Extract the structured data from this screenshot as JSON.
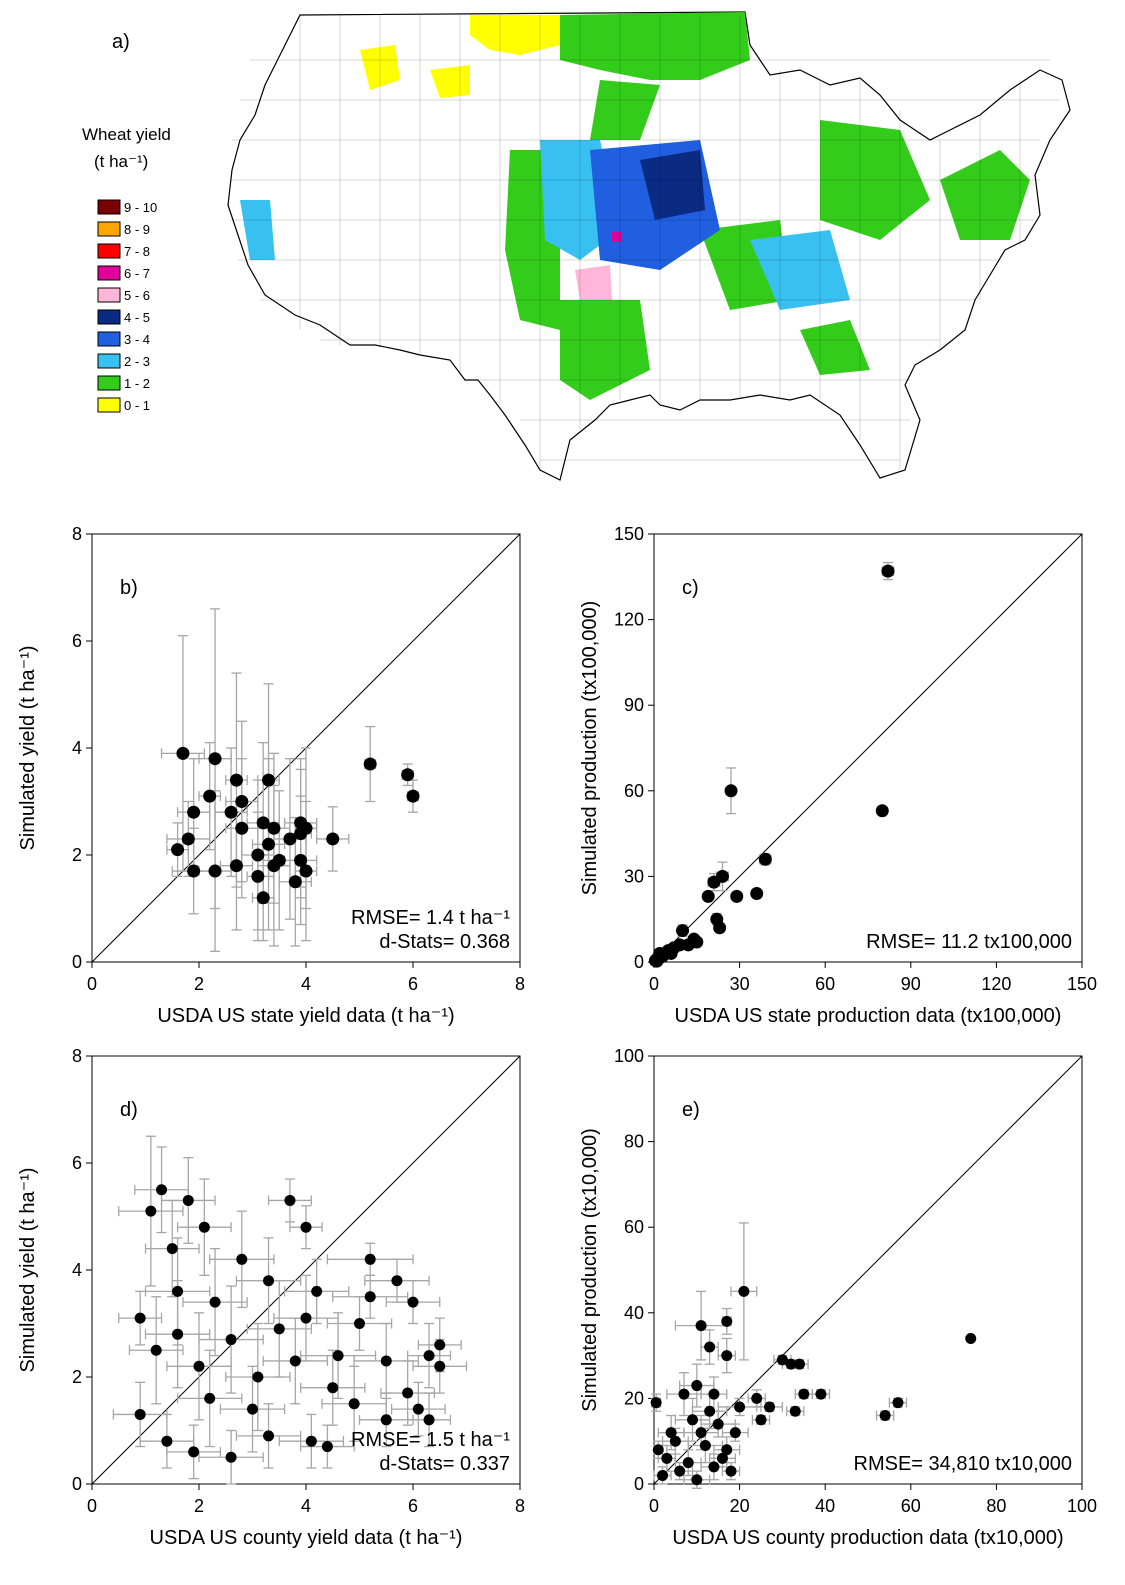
{
  "panel_a": {
    "label": "a)",
    "legend_title": "Wheat yield",
    "legend_unit": "(t ha⁻¹)",
    "legend_items": [
      {
        "label": "9 - 10",
        "color": "#7b0000"
      },
      {
        "label": "8 - 9",
        "color": "#ffa500"
      },
      {
        "label": "7 - 8",
        "color": "#ff0000"
      },
      {
        "label": "6 - 7",
        "color": "#e0009a"
      },
      {
        "label": "5 - 6",
        "color": "#ffb6d9"
      },
      {
        "label": "4 - 5",
        "color": "#0b2a82"
      },
      {
        "label": "3 - 4",
        "color": "#1f5fe0"
      },
      {
        "label": "2 - 3",
        "color": "#38c0f0"
      },
      {
        "label": "1 - 2",
        "color": "#33cc1a"
      },
      {
        "label": "0 - 1",
        "color": "#ffff00"
      }
    ]
  },
  "chart_data": [
    {
      "id": "b",
      "type": "scatter",
      "label": "b)",
      "xlabel": "USDA US state yield data (t ha⁻¹)",
      "ylabel": "Simulated yield (t ha⁻¹)",
      "xlim": [
        0,
        8
      ],
      "ylim": [
        0,
        8
      ],
      "xticks": [
        "0",
        "2",
        "4",
        "6",
        "8"
      ],
      "yticks": [
        "0",
        "2",
        "4",
        "6",
        "8"
      ],
      "one_to_one_line": true,
      "stats": [
        "RMSE= 1.4 t ha⁻¹",
        "d-Stats= 0.368"
      ],
      "points": [
        {
          "x": 1.7,
          "y": 3.9,
          "xe": 0.4,
          "ye": 2.2
        },
        {
          "x": 2.3,
          "y": 3.8,
          "xe": 0.3,
          "ye": 2.8
        },
        {
          "x": 5.2,
          "y": 3.7,
          "xe": 0.1,
          "ye": 0.7
        },
        {
          "x": 5.9,
          "y": 3.5,
          "xe": 0.1,
          "ye": 0.2
        },
        {
          "x": 6.0,
          "y": 3.1,
          "xe": 0.1,
          "ye": 0.3
        },
        {
          "x": 2.7,
          "y": 3.4,
          "xe": 0.2,
          "ye": 2.0
        },
        {
          "x": 3.3,
          "y": 3.4,
          "xe": 0.2,
          "ye": 1.8
        },
        {
          "x": 2.2,
          "y": 3.1,
          "xe": 0.2,
          "ye": 1.0
        },
        {
          "x": 2.8,
          "y": 3.0,
          "xe": 0.3,
          "ye": 1.5
        },
        {
          "x": 1.9,
          "y": 2.8,
          "xe": 0.3,
          "ye": 1.0
        },
        {
          "x": 2.6,
          "y": 2.8,
          "xe": 0.3,
          "ye": 1.2
        },
        {
          "x": 3.2,
          "y": 2.6,
          "xe": 0.3,
          "ye": 1.5
        },
        {
          "x": 3.4,
          "y": 2.5,
          "xe": 0.3,
          "ye": 1.4
        },
        {
          "x": 4.0,
          "y": 2.5,
          "xe": 0.2,
          "ye": 1.5
        },
        {
          "x": 3.9,
          "y": 2.6,
          "xe": 0.3,
          "ye": 1.2
        },
        {
          "x": 2.8,
          "y": 2.5,
          "xe": 0.3,
          "ye": 1.3
        },
        {
          "x": 3.7,
          "y": 2.3,
          "xe": 0.3,
          "ye": 1.5
        },
        {
          "x": 1.8,
          "y": 2.3,
          "xe": 0.4,
          "ye": 0.7
        },
        {
          "x": 3.3,
          "y": 2.2,
          "xe": 0.3,
          "ye": 1.6
        },
        {
          "x": 3.9,
          "y": 2.4,
          "xe": 0.2,
          "ye": 1.2
        },
        {
          "x": 4.5,
          "y": 2.3,
          "xe": 0.3,
          "ye": 0.6
        },
        {
          "x": 3.1,
          "y": 2.0,
          "xe": 0.3,
          "ye": 1.4
        },
        {
          "x": 1.6,
          "y": 2.1,
          "xe": 0.2,
          "ye": 0.5
        },
        {
          "x": 3.5,
          "y": 1.9,
          "xe": 0.3,
          "ye": 1.3
        },
        {
          "x": 3.9,
          "y": 1.9,
          "xe": 0.3,
          "ye": 1.2
        },
        {
          "x": 2.7,
          "y": 1.8,
          "xe": 0.3,
          "ye": 1.2
        },
        {
          "x": 3.4,
          "y": 1.8,
          "xe": 0.3,
          "ye": 1.5
        },
        {
          "x": 1.9,
          "y": 1.7,
          "xe": 0.4,
          "ye": 0.8
        },
        {
          "x": 2.3,
          "y": 1.7,
          "xe": 0.3,
          "ye": 1.5
        },
        {
          "x": 3.1,
          "y": 1.6,
          "xe": 0.2,
          "ye": 1.2
        },
        {
          "x": 3.8,
          "y": 1.5,
          "xe": 0.3,
          "ye": 1.2
        },
        {
          "x": 4.0,
          "y": 1.7,
          "xe": 0.2,
          "ye": 1.3
        },
        {
          "x": 3.2,
          "y": 1.2,
          "xe": 0.2,
          "ye": 0.8
        }
      ]
    },
    {
      "id": "c",
      "type": "scatter",
      "label": "c)",
      "xlabel": "USDA US state production data (tx100,000)",
      "ylabel": "Simulated production (tx100,000)",
      "xlim": [
        0,
        150
      ],
      "ylim": [
        0,
        150
      ],
      "xticks": [
        "0",
        "30",
        "60",
        "90",
        "120",
        "150"
      ],
      "yticks": [
        "0",
        "30",
        "60",
        "90",
        "120",
        "150"
      ],
      "one_to_one_line": true,
      "stats": [
        "RMSE= 11.2 tx100,000"
      ],
      "points": [
        {
          "x": 82,
          "y": 137,
          "xe": 2,
          "ye": 3
        },
        {
          "x": 27,
          "y": 60,
          "xe": 0,
          "ye": 8
        },
        {
          "x": 80,
          "y": 53,
          "xe": 0,
          "ye": 0
        },
        {
          "x": 39,
          "y": 36,
          "xe": 2,
          "ye": 2
        },
        {
          "x": 24,
          "y": 30,
          "xe": 2,
          "ye": 5
        },
        {
          "x": 21,
          "y": 28,
          "xe": 2,
          "ye": 3
        },
        {
          "x": 36,
          "y": 24,
          "xe": 1,
          "ye": 1
        },
        {
          "x": 29,
          "y": 23,
          "xe": 1,
          "ye": 1
        },
        {
          "x": 19,
          "y": 23,
          "xe": 1,
          "ye": 1
        },
        {
          "x": 22,
          "y": 15,
          "xe": 1,
          "ye": 2
        },
        {
          "x": 23,
          "y": 12,
          "xe": 1,
          "ye": 1
        },
        {
          "x": 10,
          "y": 11,
          "xe": 1,
          "ye": 2
        },
        {
          "x": 14,
          "y": 8,
          "xe": 1,
          "ye": 1
        },
        {
          "x": 12,
          "y": 6,
          "xe": 1,
          "ye": 1
        },
        {
          "x": 9,
          "y": 6,
          "xe": 1,
          "ye": 1
        },
        {
          "x": 7,
          "y": 5,
          "xe": 1,
          "ye": 1
        },
        {
          "x": 5,
          "y": 4,
          "xe": 0,
          "ye": 1
        },
        {
          "x": 4,
          "y": 3,
          "xe": 0,
          "ye": 0
        },
        {
          "x": 3,
          "y": 2,
          "xe": 0,
          "ye": 0
        },
        {
          "x": 2,
          "y": 1.5,
          "xe": 0,
          "ye": 0
        },
        {
          "x": 1,
          "y": 1,
          "xe": 0,
          "ye": 0
        },
        {
          "x": 0.5,
          "y": 0.5,
          "xe": 0,
          "ye": 0
        },
        {
          "x": 6,
          "y": 3,
          "xe": 0,
          "ye": 0
        },
        {
          "x": 2,
          "y": 3,
          "xe": 0,
          "ye": 0
        },
        {
          "x": 1,
          "y": 0.3,
          "xe": 0,
          "ye": 0
        },
        {
          "x": 15,
          "y": 7,
          "xe": 1,
          "ye": 1
        }
      ]
    },
    {
      "id": "d",
      "type": "scatter",
      "label": "d)",
      "xlabel": "USDA US county yield data (t ha⁻¹)",
      "ylabel": "Simulated yield (t ha⁻¹)",
      "xlim": [
        0,
        8
      ],
      "ylim": [
        0,
        8
      ],
      "xticks": [
        "0",
        "2",
        "4",
        "6",
        "8"
      ],
      "yticks": [
        "0",
        "2",
        "4",
        "6",
        "8"
      ],
      "one_to_one_line": true,
      "stats": [
        "RMSE= 1.5 t ha⁻¹",
        "d-Stats= 0.337"
      ],
      "points": [
        {
          "x": 1.3,
          "y": 5.5,
          "xe": 0.5,
          "ye": 0.8
        },
        {
          "x": 1.1,
          "y": 5.1,
          "xe": 0.6,
          "ye": 1.4
        },
        {
          "x": 1.8,
          "y": 5.3,
          "xe": 0.5,
          "ye": 0.8
        },
        {
          "x": 3.7,
          "y": 5.3,
          "xe": 0.4,
          "ye": 0.4
        },
        {
          "x": 4.0,
          "y": 4.8,
          "xe": 0.3,
          "ye": 0.4
        },
        {
          "x": 2.1,
          "y": 4.8,
          "xe": 0.5,
          "ye": 0.9
        },
        {
          "x": 5.2,
          "y": 4.2,
          "xe": 0.8,
          "ye": 0.3
        },
        {
          "x": 4.2,
          "y": 3.6,
          "xe": 0.6,
          "ye": 0.6
        },
        {
          "x": 5.7,
          "y": 3.8,
          "xe": 0.6,
          "ye": 0.4
        },
        {
          "x": 5.2,
          "y": 3.5,
          "xe": 0.7,
          "ye": 0.4
        },
        {
          "x": 6.0,
          "y": 3.4,
          "xe": 0.5,
          "ye": 0.4
        },
        {
          "x": 5.0,
          "y": 3.0,
          "xe": 0.6,
          "ye": 0.5
        },
        {
          "x": 0.9,
          "y": 3.1,
          "xe": 0.4,
          "ye": 0.5
        },
        {
          "x": 1.2,
          "y": 2.5,
          "xe": 0.5,
          "ye": 1.0
        },
        {
          "x": 2.0,
          "y": 2.2,
          "xe": 0.6,
          "ye": 1.0
        },
        {
          "x": 2.6,
          "y": 2.7,
          "xe": 0.6,
          "ye": 1.0
        },
        {
          "x": 3.1,
          "y": 2.0,
          "xe": 0.6,
          "ye": 1.0
        },
        {
          "x": 3.5,
          "y": 2.9,
          "xe": 0.6,
          "ye": 0.9
        },
        {
          "x": 4.6,
          "y": 2.4,
          "xe": 0.7,
          "ye": 0.8
        },
        {
          "x": 5.5,
          "y": 2.3,
          "xe": 0.6,
          "ye": 0.7
        },
        {
          "x": 6.3,
          "y": 2.4,
          "xe": 0.4,
          "ye": 0.6
        },
        {
          "x": 6.5,
          "y": 2.2,
          "xe": 0.5,
          "ye": 0.5
        },
        {
          "x": 6.5,
          "y": 2.6,
          "xe": 0.4,
          "ye": 0.5
        },
        {
          "x": 6.1,
          "y": 1.4,
          "xe": 0.5,
          "ye": 0.5
        },
        {
          "x": 6.3,
          "y": 1.2,
          "xe": 0.4,
          "ye": 0.5
        },
        {
          "x": 5.9,
          "y": 1.7,
          "xe": 0.5,
          "ye": 0.6
        },
        {
          "x": 5.5,
          "y": 1.2,
          "xe": 0.5,
          "ye": 0.5
        },
        {
          "x": 4.9,
          "y": 1.5,
          "xe": 0.6,
          "ye": 0.7
        },
        {
          "x": 0.9,
          "y": 1.3,
          "xe": 0.5,
          "ye": 0.6
        },
        {
          "x": 1.4,
          "y": 0.8,
          "xe": 0.5,
          "ye": 0.5
        },
        {
          "x": 1.9,
          "y": 0.6,
          "xe": 0.5,
          "ye": 0.5
        },
        {
          "x": 2.6,
          "y": 0.5,
          "xe": 0.6,
          "ye": 0.5
        },
        {
          "x": 3.3,
          "y": 0.9,
          "xe": 0.6,
          "ye": 0.6
        },
        {
          "x": 4.1,
          "y": 0.8,
          "xe": 0.6,
          "ye": 0.5
        },
        {
          "x": 4.4,
          "y": 0.7,
          "xe": 0.5,
          "ye": 0.4
        },
        {
          "x": 1.5,
          "y": 4.4,
          "xe": 0.5,
          "ye": 0.9
        },
        {
          "x": 2.8,
          "y": 4.2,
          "xe": 0.6,
          "ye": 0.9
        },
        {
          "x": 3.3,
          "y": 3.8,
          "xe": 0.6,
          "ye": 0.8
        },
        {
          "x": 2.3,
          "y": 3.4,
          "xe": 0.6,
          "ye": 1.0
        },
        {
          "x": 1.6,
          "y": 3.6,
          "xe": 0.6,
          "ye": 1.0
        },
        {
          "x": 4.0,
          "y": 3.1,
          "xe": 0.6,
          "ye": 0.8
        },
        {
          "x": 3.0,
          "y": 1.4,
          "xe": 0.6,
          "ye": 0.8
        },
        {
          "x": 2.2,
          "y": 1.6,
          "xe": 0.6,
          "ye": 0.9
        },
        {
          "x": 4.5,
          "y": 1.8,
          "xe": 0.6,
          "ye": 0.7
        },
        {
          "x": 1.6,
          "y": 2.8,
          "xe": 0.6,
          "ye": 1.0
        },
        {
          "x": 3.8,
          "y": 2.3,
          "xe": 0.6,
          "ye": 0.8
        }
      ]
    },
    {
      "id": "e",
      "type": "scatter",
      "label": "e)",
      "xlabel": "USDA US county production data (tx10,000)",
      "ylabel": "Simulated production (tx10,000)",
      "xlim": [
        0,
        100
      ],
      "ylim": [
        0,
        100
      ],
      "xticks": [
        "0",
        "20",
        "40",
        "60",
        "80",
        "100"
      ],
      "yticks": [
        "0",
        "20",
        "40",
        "60",
        "80",
        "100"
      ],
      "one_to_one_line": true,
      "stats": [
        "RMSE= 34,810 tx10,000"
      ],
      "points": [
        {
          "x": 21,
          "y": 45,
          "xe": 3,
          "ye": 16
        },
        {
          "x": 74,
          "y": 34,
          "xe": 0,
          "ye": 0
        },
        {
          "x": 11,
          "y": 37,
          "xe": 6,
          "ye": 8
        },
        {
          "x": 17,
          "y": 38,
          "xe": 1,
          "ye": 3
        },
        {
          "x": 13,
          "y": 32,
          "xe": 2,
          "ye": 4
        },
        {
          "x": 17,
          "y": 30,
          "xe": 2,
          "ye": 4
        },
        {
          "x": 30,
          "y": 29,
          "xe": 2,
          "ye": 1
        },
        {
          "x": 32,
          "y": 28,
          "xe": 2,
          "ye": 1
        },
        {
          "x": 34,
          "y": 28,
          "xe": 2,
          "ye": 1
        },
        {
          "x": 35,
          "y": 21,
          "xe": 2,
          "ye": 1
        },
        {
          "x": 39,
          "y": 21,
          "xe": 2,
          "ye": 1
        },
        {
          "x": 57,
          "y": 19,
          "xe": 2,
          "ye": 1
        },
        {
          "x": 54,
          "y": 16,
          "xe": 2,
          "ye": 1
        },
        {
          "x": 33,
          "y": 17,
          "xe": 2,
          "ye": 1
        },
        {
          "x": 27,
          "y": 18,
          "xe": 3,
          "ye": 1
        },
        {
          "x": 24,
          "y": 20,
          "xe": 2,
          "ye": 2
        },
        {
          "x": 25,
          "y": 15,
          "xe": 2,
          "ye": 1
        },
        {
          "x": 20,
          "y": 18,
          "xe": 5,
          "ye": 2
        },
        {
          "x": 0.5,
          "y": 19,
          "xe": 1,
          "ye": 2
        },
        {
          "x": 10,
          "y": 23,
          "xe": 4,
          "ye": 5
        },
        {
          "x": 7,
          "y": 21,
          "xe": 4,
          "ye": 5
        },
        {
          "x": 14,
          "y": 21,
          "xe": 3,
          "ye": 4
        },
        {
          "x": 19,
          "y": 12,
          "xe": 3,
          "ye": 2
        },
        {
          "x": 15,
          "y": 14,
          "xe": 4,
          "ye": 3
        },
        {
          "x": 9,
          "y": 15,
          "xe": 4,
          "ye": 5
        },
        {
          "x": 5,
          "y": 10,
          "xe": 3,
          "ye": 3
        },
        {
          "x": 12,
          "y": 9,
          "xe": 4,
          "ye": 4
        },
        {
          "x": 17,
          "y": 8,
          "xe": 3,
          "ye": 3
        },
        {
          "x": 8,
          "y": 5,
          "xe": 3,
          "ye": 3
        },
        {
          "x": 3,
          "y": 6,
          "xe": 2,
          "ye": 3
        },
        {
          "x": 14,
          "y": 4,
          "xe": 3,
          "ye": 3
        },
        {
          "x": 18,
          "y": 3,
          "xe": 2,
          "ye": 2
        },
        {
          "x": 10,
          "y": 1,
          "xe": 3,
          "ye": 2
        },
        {
          "x": 2,
          "y": 2,
          "xe": 2,
          "ye": 2
        },
        {
          "x": 6,
          "y": 3,
          "xe": 3,
          "ye": 2
        },
        {
          "x": 1,
          "y": 8,
          "xe": 1,
          "ye": 2
        },
        {
          "x": 4,
          "y": 12,
          "xe": 3,
          "ye": 4
        },
        {
          "x": 13,
          "y": 17,
          "xe": 4,
          "ye": 4
        },
        {
          "x": 16,
          "y": 6,
          "xe": 3,
          "ye": 2
        },
        {
          "x": 11,
          "y": 12,
          "xe": 4,
          "ye": 4
        }
      ]
    }
  ]
}
